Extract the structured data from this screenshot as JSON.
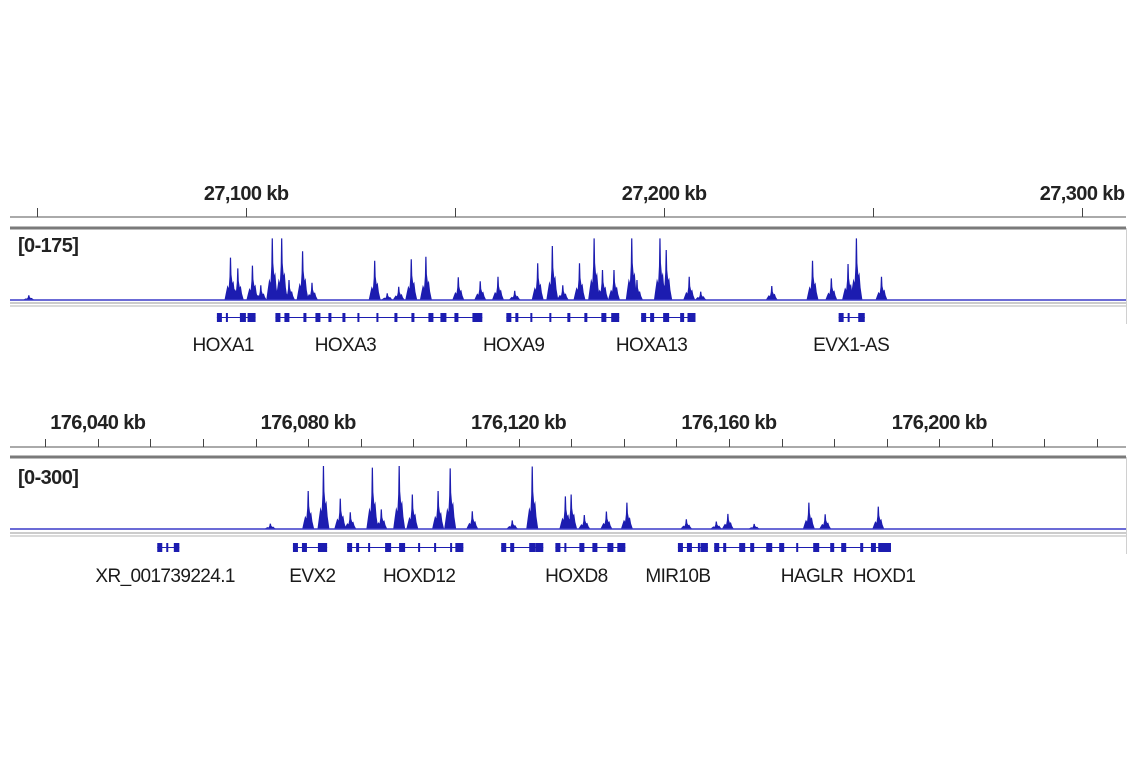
{
  "colors": {
    "signal": "#1c1cb0",
    "baseline": "#3a3ac8",
    "gene": "#1c1cb0",
    "border": "#8a8a8a",
    "text": "#222222"
  },
  "chart_data": [
    {
      "type": "area",
      "xunit": "kb",
      "xlim": [
        27043.5,
        27310.5
      ],
      "tick_interval_kb": 50,
      "tick_labels": [
        {
          "kb": 27100,
          "label": "27,100 kb"
        },
        {
          "kb": 27200,
          "label": "27,200 kb"
        },
        {
          "kb": 27300,
          "label": "27,300 kb"
        }
      ],
      "data_range_label": "[0-175]",
      "ylim": [
        0,
        175
      ],
      "peaks": [
        [
          27048,
          12
        ],
        [
          27096.25,
          106
        ],
        [
          27098,
          79
        ],
        [
          27101.5,
          86
        ],
        [
          27103.5,
          37
        ],
        [
          27106.25,
          154
        ],
        [
          27108.5,
          154
        ],
        [
          27110.25,
          50
        ],
        [
          27113.5,
          122
        ],
        [
          27115.75,
          43
        ],
        [
          27130.75,
          98
        ],
        [
          27133.75,
          17
        ],
        [
          27136.5,
          33
        ],
        [
          27139.5,
          102
        ],
        [
          27143,
          108
        ],
        [
          27150.75,
          57
        ],
        [
          27156,
          47
        ],
        [
          27160.25,
          58
        ],
        [
          27164.25,
          23
        ],
        [
          27169.75,
          92
        ],
        [
          27173.25,
          135
        ],
        [
          27175.75,
          37
        ],
        [
          27179.75,
          92
        ],
        [
          27183.25,
          154
        ],
        [
          27185.25,
          75
        ],
        [
          27188,
          75
        ],
        [
          27192.25,
          154
        ],
        [
          27193.5,
          50
        ],
        [
          27199,
          154
        ],
        [
          27200.5,
          125
        ],
        [
          27206,
          58
        ],
        [
          27208.75,
          21
        ],
        [
          27225.75,
          35
        ],
        [
          27235.5,
          98
        ],
        [
          27240,
          54
        ],
        [
          27244,
          90
        ],
        [
          27246,
          154
        ],
        [
          27252,
          58
        ]
      ],
      "genes": [
        {
          "name": "HOXA1",
          "start": 27093,
          "end": 27102.25,
          "label_kb": 27094.5
        },
        {
          "name": "HOXA3",
          "start": 27107,
          "end": 27156.5,
          "label_kb": 27123.75
        },
        {
          "name": "HOXA9",
          "start": 27162.25,
          "end": 27189.25,
          "label_kb": 27164
        },
        {
          "name": "HOXA13",
          "start": 27194.5,
          "end": 27207.5,
          "label_kb": 27197
        },
        {
          "name": "EVX1-AS",
          "start": 27241.75,
          "end": 27248,
          "label_kb": 27244.75
        }
      ]
    },
    {
      "type": "area",
      "xunit": "kb",
      "xlim": [
        176023.3,
        176235.5
      ],
      "tick_interval_kb": 10,
      "tick_labels": [
        {
          "kb": 176040,
          "label": "176,040 kb"
        },
        {
          "kb": 176080,
          "label": "176,080 kb"
        },
        {
          "kb": 176120,
          "label": "176,120 kb"
        },
        {
          "kb": 176160,
          "label": "176,160 kb"
        },
        {
          "kb": 176200,
          "label": "176,200 kb"
        }
      ],
      "data_range_label": "[0-300]",
      "ylim": [
        0,
        300
      ],
      "peaks": [
        [
          176072.8,
          23
        ],
        [
          176080,
          163
        ],
        [
          176082.9,
          270
        ],
        [
          176086.1,
          130
        ],
        [
          176088,
          72
        ],
        [
          176092.2,
          263
        ],
        [
          176093.9,
          84
        ],
        [
          176097.3,
          270
        ],
        [
          176099.8,
          148
        ],
        [
          176104.7,
          163
        ],
        [
          176107,
          260
        ],
        [
          176111.2,
          76
        ],
        [
          176118.8,
          37
        ],
        [
          176122.6,
          268
        ],
        [
          176128.9,
          140
        ],
        [
          176130,
          148
        ],
        [
          176132.5,
          60
        ],
        [
          176136.7,
          75
        ],
        [
          176140.6,
          113
        ],
        [
          176151.9,
          42
        ],
        [
          176157.6,
          32
        ],
        [
          176159.8,
          65
        ],
        [
          176164.8,
          22
        ],
        [
          176175.2,
          113
        ],
        [
          176178.3,
          63
        ],
        [
          176188.4,
          96
        ]
      ],
      "genes": [
        {
          "name": "XR_001739224.1",
          "start": 176051.3,
          "end": 176055.5,
          "label_kb": 176052.8
        },
        {
          "name": "EVX2",
          "start": 176077.1,
          "end": 176083.6,
          "label_kb": 176080.8
        },
        {
          "name": "HOXD12",
          "start": 176087.4,
          "end": 176109.5,
          "label_kb": 176101.1
        },
        {
          "name": "",
          "start": 176116.7,
          "end": 176124.7
        },
        {
          "name": "HOXD8",
          "start": 176127,
          "end": 176140.3,
          "label_kb": 176131
        },
        {
          "name": "MIR10B",
          "start": 176150.3,
          "end": 176156,
          "label_kb": 176150.3
        },
        {
          "name": "HAGLR",
          "start": 176157.2,
          "end": 176190.8,
          "label_kb": 176175.8
        },
        {
          "name": "HOXD1",
          "start": 176187,
          "end": 176190.8,
          "label_kb": 176189.5
        }
      ]
    }
  ]
}
